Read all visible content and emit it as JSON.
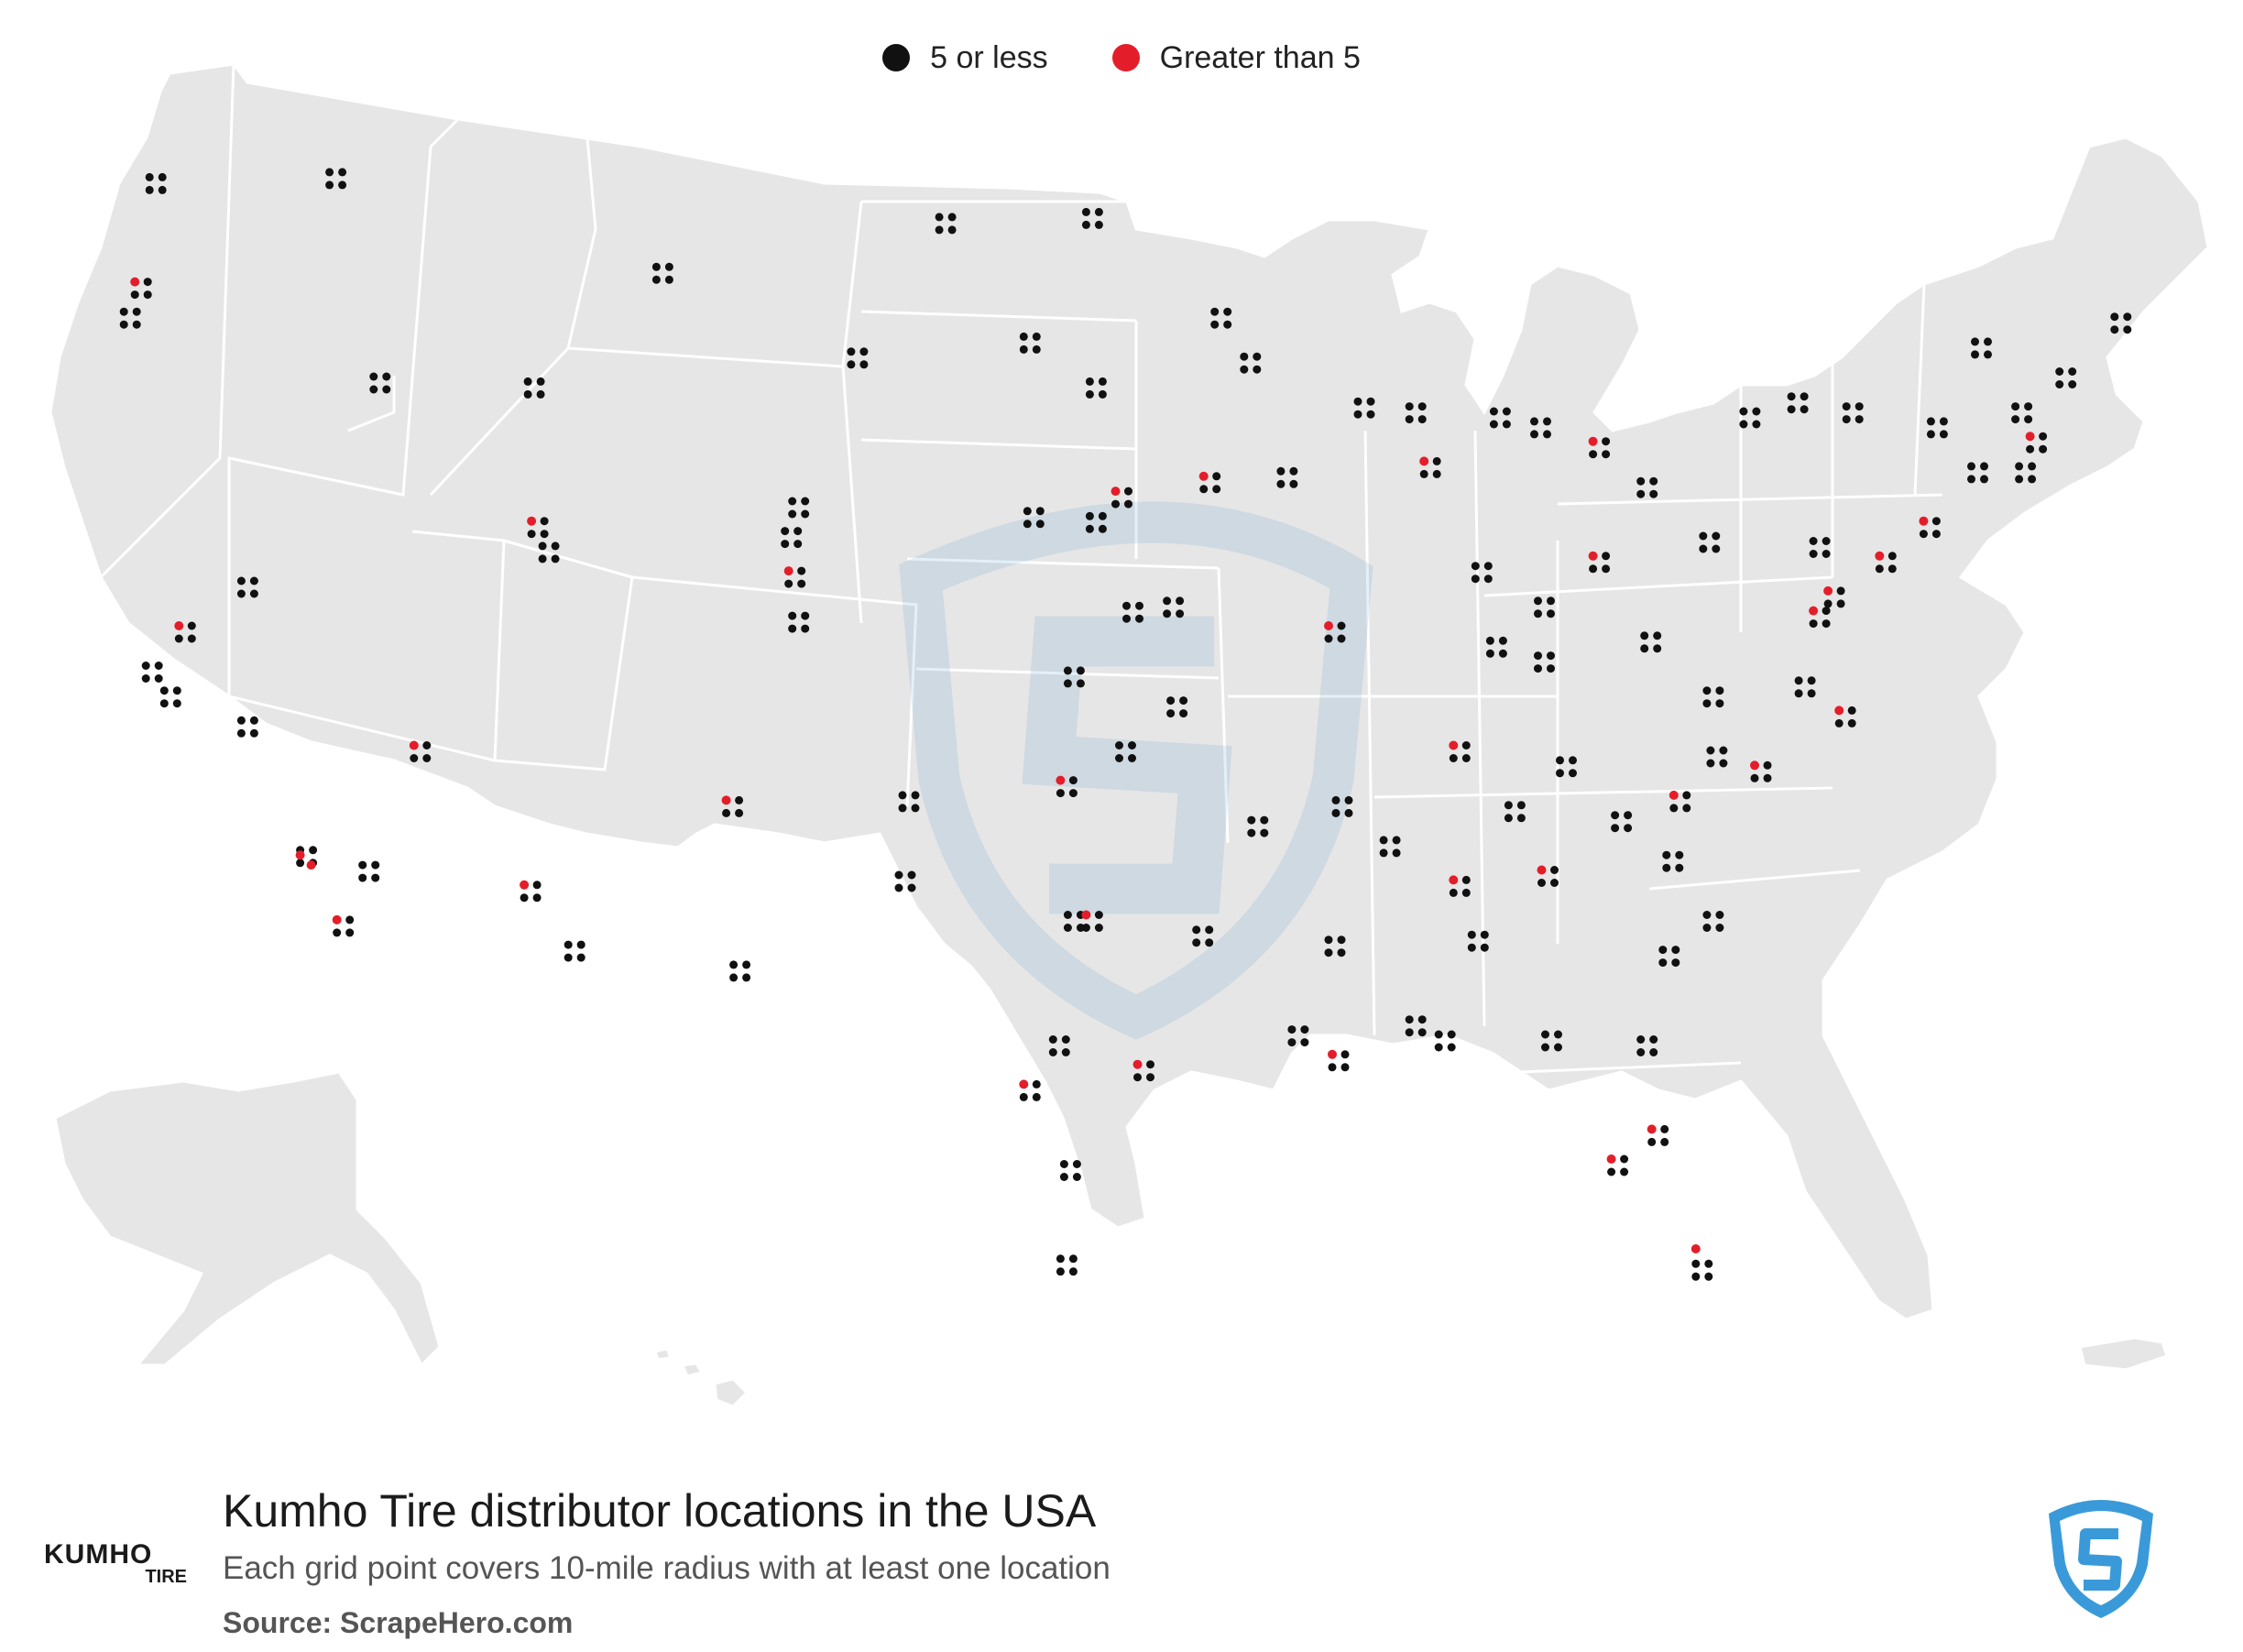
{
  "legend": {
    "items": [
      {
        "label": "5 or less",
        "color": "#111111"
      },
      {
        "label": "Greater than 5",
        "color": "#e31e2a"
      }
    ]
  },
  "map": {
    "land_color": "#e6e6e6",
    "border_color": "#ffffff",
    "watermark_icon": "scrapehero-shield-icon"
  },
  "chart_data": {
    "type": "scatter",
    "title": "Kumho Tire distributor locations in the USA",
    "subtitle": "Each grid point covers 10-mile radius with at least one location",
    "categories": [
      "5 or less",
      "Greater than 5"
    ],
    "series": [
      {
        "name": "5 or less",
        "color": "#111111",
        "points": [
          [
            -122.3,
            47.6
          ],
          [
            -122.7,
            45.5
          ],
          [
            -123.0,
            44.9
          ],
          [
            -117.4,
            47.7
          ],
          [
            -116.2,
            43.6
          ],
          [
            -112.0,
            43.5
          ],
          [
            -111.9,
            40.7
          ],
          [
            -111.6,
            40.2
          ],
          [
            -108.5,
            45.8
          ],
          [
            -104.8,
            41.1
          ],
          [
            -104.9,
            39.7
          ],
          [
            -104.8,
            38.8
          ],
          [
            -105.0,
            40.5
          ],
          [
            -106.6,
            35.1
          ],
          [
            -112.1,
            33.4
          ],
          [
            -110.9,
            32.2
          ],
          [
            -115.1,
            36.2
          ],
          [
            -119.8,
            39.5
          ],
          [
            -121.5,
            38.6
          ],
          [
            -122.4,
            37.8
          ],
          [
            -121.9,
            37.3
          ],
          [
            -119.8,
            36.7
          ],
          [
            -118.2,
            34.1
          ],
          [
            -117.2,
            32.7
          ],
          [
            -116.5,
            33.8
          ],
          [
            -100.8,
            46.8
          ],
          [
            -96.8,
            46.9
          ],
          [
            -96.7,
            43.5
          ],
          [
            -103.2,
            44.1
          ],
          [
            -98.5,
            44.4
          ],
          [
            -96.0,
            41.3
          ],
          [
            -96.7,
            40.8
          ],
          [
            -98.4,
            40.9
          ],
          [
            -97.3,
            37.7
          ],
          [
            -95.7,
            39.0
          ],
          [
            -94.6,
            39.1
          ],
          [
            -93.3,
            44.9
          ],
          [
            -92.5,
            44.0
          ],
          [
            -93.6,
            41.6
          ],
          [
            -91.5,
            41.7
          ],
          [
            -90.2,
            38.6
          ],
          [
            -94.5,
            37.1
          ],
          [
            -92.3,
            34.7
          ],
          [
            -97.5,
            35.5
          ],
          [
            -95.9,
            36.2
          ],
          [
            -96.8,
            32.8
          ],
          [
            -97.3,
            32.8
          ],
          [
            -95.4,
            29.8
          ],
          [
            -98.5,
            29.4
          ],
          [
            -97.7,
            30.3
          ],
          [
            -101.8,
            35.2
          ],
          [
            -101.9,
            33.6
          ],
          [
            -106.4,
            31.8
          ],
          [
            -97.4,
            27.8
          ],
          [
            -97.5,
            25.9
          ],
          [
            -90.1,
            30.0
          ],
          [
            -91.2,
            30.5
          ],
          [
            -93.8,
            32.5
          ],
          [
            -90.2,
            32.3
          ],
          [
            -88.7,
            34.3
          ],
          [
            -86.8,
            33.5
          ],
          [
            -86.3,
            32.4
          ],
          [
            -88.0,
            30.7
          ],
          [
            -84.4,
            33.7
          ],
          [
            -81.1,
            32.1
          ],
          [
            -82.5,
            27.9
          ],
          [
            -81.4,
            28.5
          ],
          [
            -80.2,
            25.8
          ],
          [
            -81.7,
            30.3
          ],
          [
            -84.3,
            30.4
          ],
          [
            -87.2,
            30.4
          ],
          [
            -86.8,
            36.2
          ],
          [
            -83.9,
            35.9
          ],
          [
            -85.3,
            35.0
          ],
          [
            -90.0,
            35.1
          ],
          [
            -85.8,
            38.3
          ],
          [
            -84.5,
            38.0
          ],
          [
            -86.2,
            39.8
          ],
          [
            -87.6,
            41.9
          ],
          [
            -88.0,
            43.0
          ],
          [
            -89.4,
            43.1
          ],
          [
            -83.0,
            42.3
          ],
          [
            -85.7,
            42.9
          ],
          [
            -84.6,
            42.7
          ],
          [
            -83.0,
            40.0
          ],
          [
            -84.5,
            39.1
          ],
          [
            -81.7,
            41.5
          ],
          [
            -80.0,
            40.4
          ],
          [
            -77.0,
            40.3
          ],
          [
            -75.2,
            40.0
          ],
          [
            -74.0,
            40.7
          ],
          [
            -73.8,
            42.7
          ],
          [
            -76.1,
            43.0
          ],
          [
            -78.9,
            42.9
          ],
          [
            -77.6,
            43.2
          ],
          [
            -71.1,
            42.4
          ],
          [
            -71.4,
            41.8
          ],
          [
            -72.7,
            41.8
          ],
          [
            -70.3,
            43.7
          ],
          [
            -68.8,
            44.8
          ],
          [
            -72.6,
            44.3
          ],
          [
            -71.5,
            43.0
          ],
          [
            -77.0,
            38.9
          ],
          [
            -76.6,
            39.3
          ],
          [
            -77.4,
            37.5
          ],
          [
            -76.3,
            36.9
          ],
          [
            -78.6,
            35.8
          ],
          [
            -80.8,
            35.2
          ],
          [
            -79.8,
            36.1
          ],
          [
            -81.0,
            34.0
          ],
          [
            -79.9,
            32.8
          ],
          [
            -82.4,
            34.8
          ],
          [
            -81.6,
            38.4
          ],
          [
            -79.9,
            37.3
          ]
        ]
      },
      {
        "name": "Greater than 5",
        "color": "#e31e2a",
        "points": [
          [
            -122.7,
            45.5
          ],
          [
            -121.5,
            38.6
          ],
          [
            -118.2,
            34.0
          ],
          [
            -117.9,
            33.8
          ],
          [
            -117.2,
            32.7
          ],
          [
            -112.1,
            33.4
          ],
          [
            -115.1,
            36.2
          ],
          [
            -104.9,
            39.7
          ],
          [
            -106.6,
            35.1
          ],
          [
            -96.8,
            32.8
          ],
          [
            -95.4,
            29.8
          ],
          [
            -98.5,
            29.4
          ],
          [
            -97.5,
            35.5
          ],
          [
            -90.2,
            38.6
          ],
          [
            -84.4,
            33.7
          ],
          [
            -81.4,
            28.5
          ],
          [
            -82.5,
            27.9
          ],
          [
            -80.2,
            26.1
          ],
          [
            -86.8,
            36.2
          ],
          [
            -87.6,
            41.9
          ],
          [
            -83.0,
            42.3
          ],
          [
            -83.0,
            40.0
          ],
          [
            -75.2,
            40.0
          ],
          [
            -74.0,
            40.7
          ],
          [
            -77.0,
            38.9
          ],
          [
            -76.6,
            39.3
          ],
          [
            -80.8,
            35.2
          ],
          [
            -78.6,
            35.8
          ],
          [
            -86.8,
            33.5
          ],
          [
            -90.1,
            30.0
          ],
          [
            -76.3,
            36.9
          ],
          [
            -71.1,
            42.4
          ],
          [
            -93.6,
            41.6
          ],
          [
            -96.0,
            41.3
          ],
          [
            -111.9,
            40.7
          ]
        ]
      }
    ]
  },
  "footer": {
    "title": "Kumho Tire distributor locations in the USA",
    "subtitle": "Each grid point covers 10-mile radius with at least one location",
    "source": "Source: ScrapeHero.com",
    "brand_logo_line1": "KUMHO",
    "brand_logo_line2": "TIRE",
    "brand_icon": "scrapehero-shield-icon"
  }
}
